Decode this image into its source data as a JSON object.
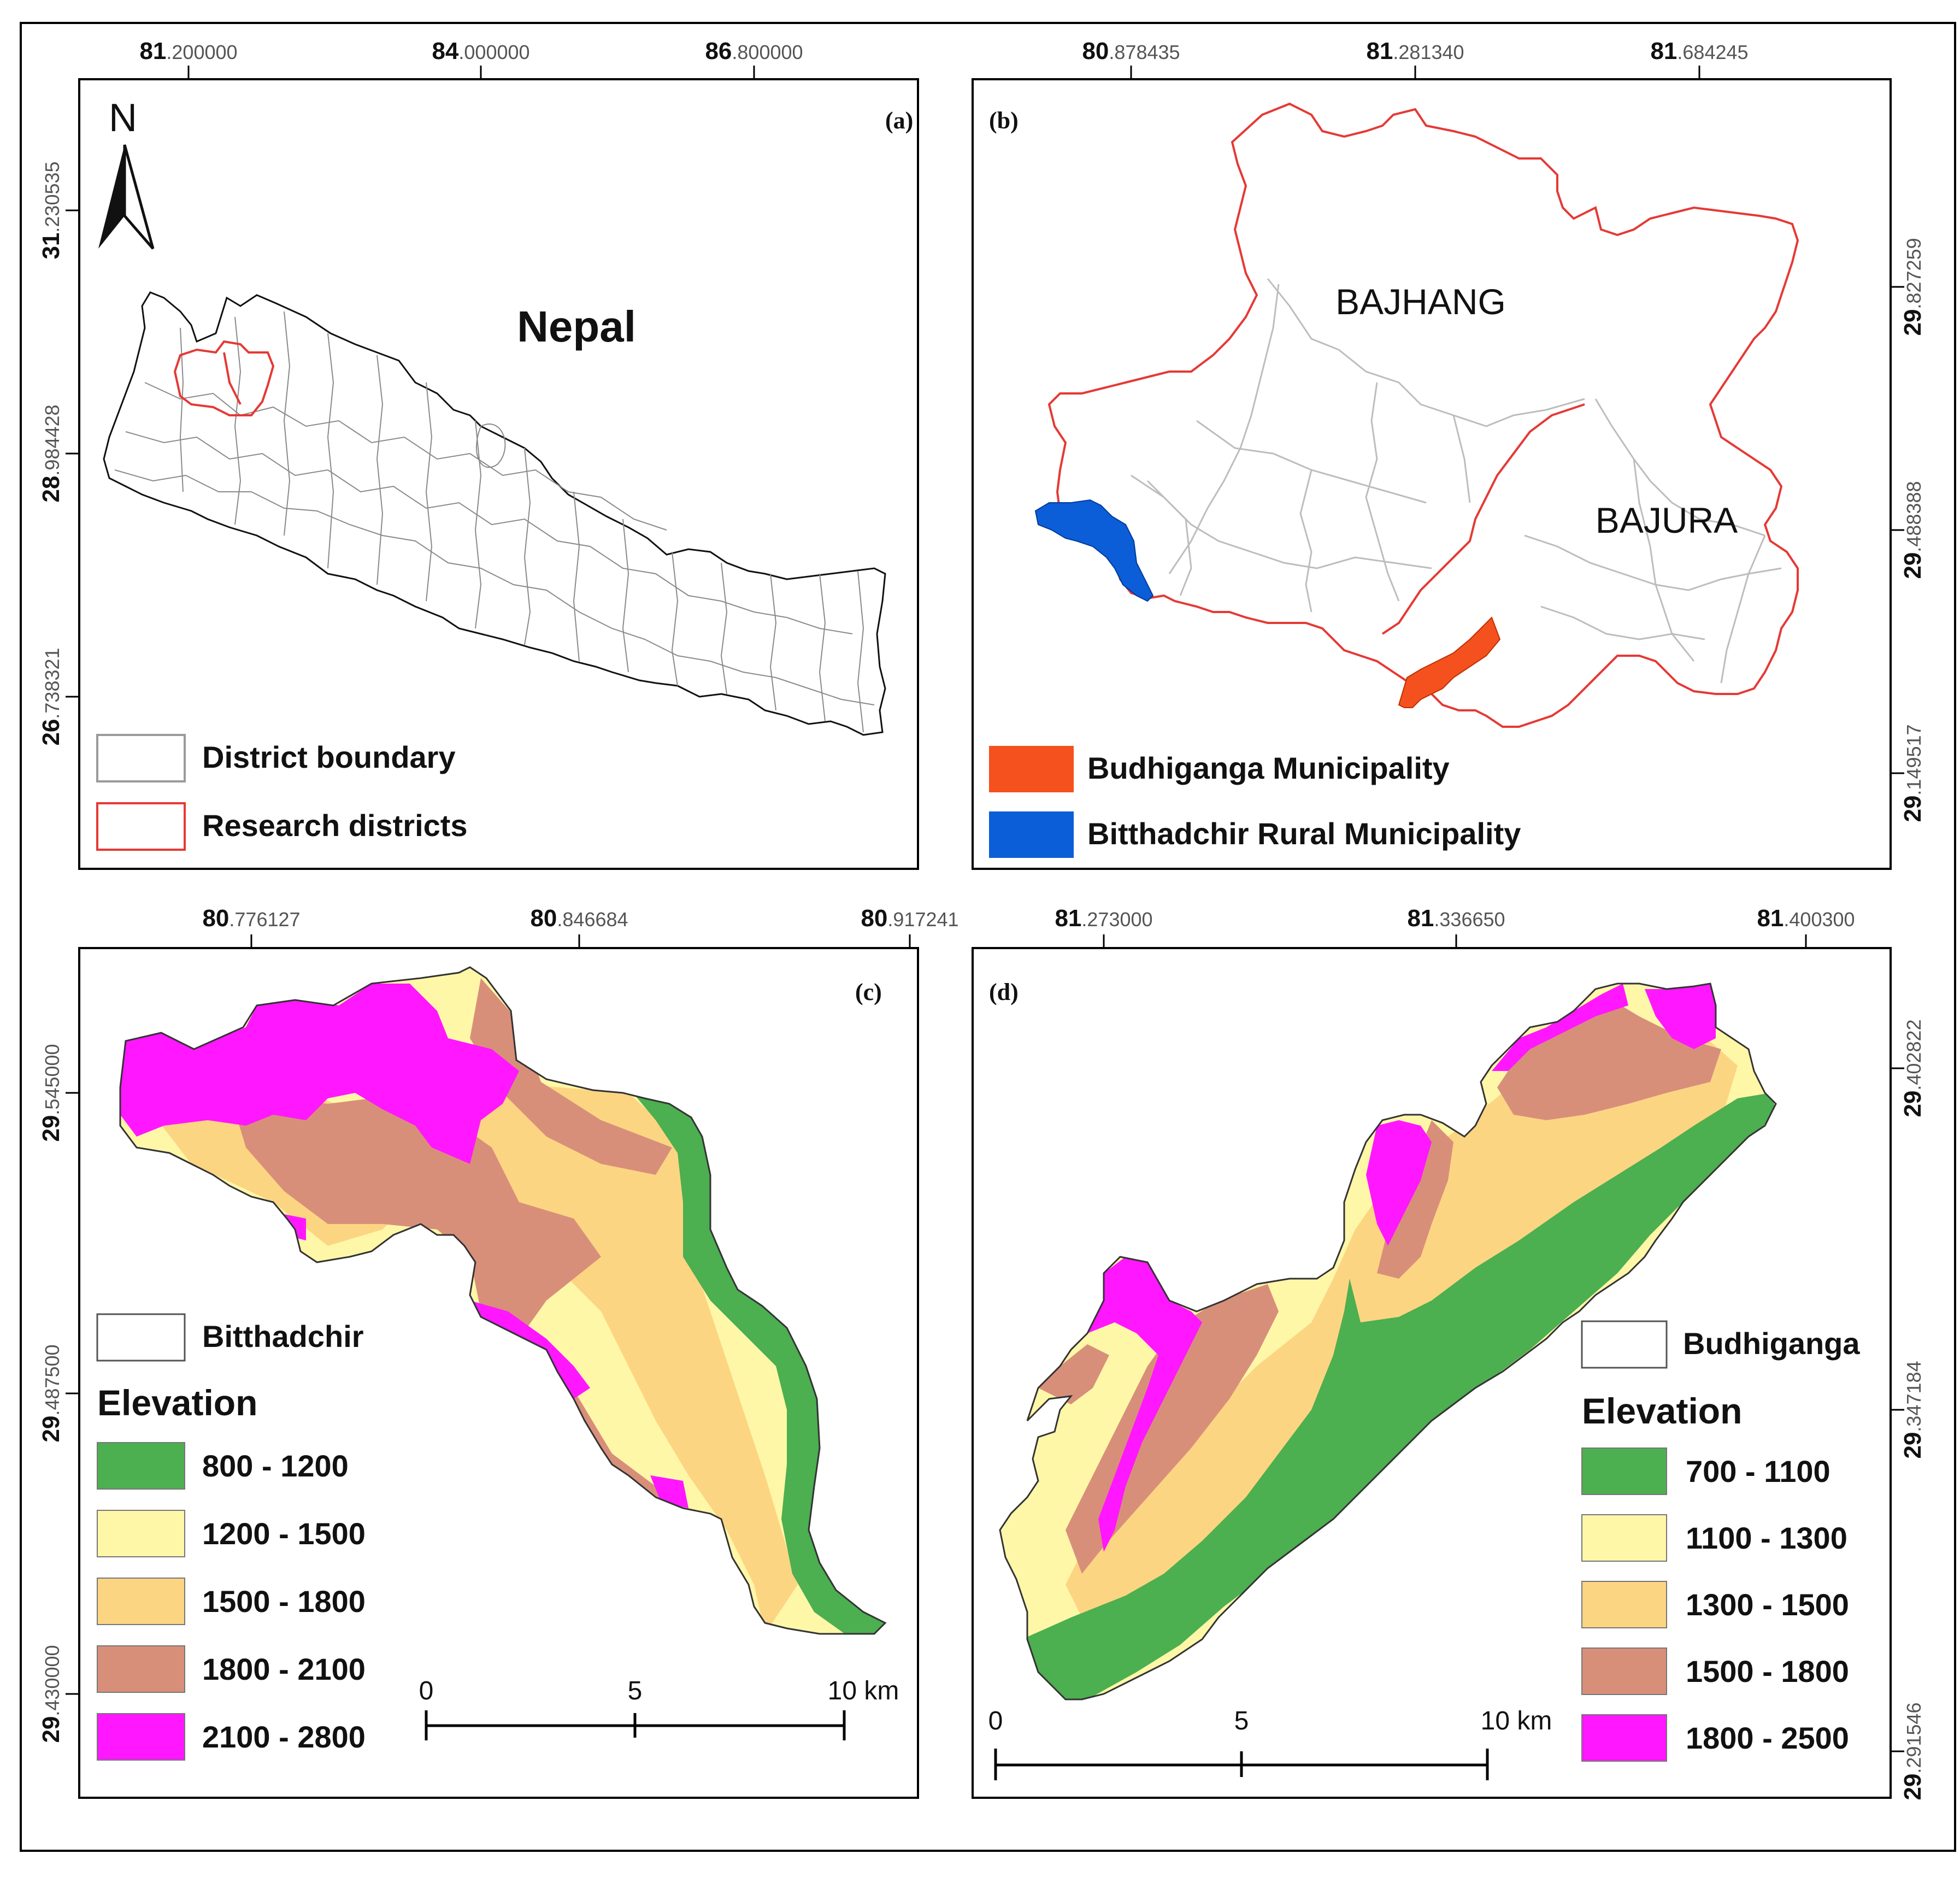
{
  "figure": {
    "panels": [
      {
        "id": "a",
        "label": "(a)",
        "north_arrow": "N",
        "country_label": "Nepal",
        "top_ticks": [
          {
            "major": "81",
            "minor": ".200000"
          },
          {
            "major": "84",
            "minor": ".000000"
          },
          {
            "major": "86",
            "minor": ".800000"
          }
        ],
        "left_ticks": [
          {
            "major": "31",
            "minor": ".230535"
          },
          {
            "major": "28",
            "minor": ".984428"
          },
          {
            "major": "26",
            "minor": ".738321"
          }
        ],
        "legend": [
          {
            "label": "District boundary",
            "fill": "#ffffff",
            "stroke": "#9a9a9a"
          },
          {
            "label": "Research districts",
            "fill": "#ffffff",
            "stroke": "#e53935"
          }
        ]
      },
      {
        "id": "b",
        "label": "(b)",
        "district_labels": [
          "BAJHANG",
          "BAJURA"
        ],
        "top_ticks": [
          {
            "major": "80",
            "minor": ".878435"
          },
          {
            "major": "81",
            "minor": ".281340"
          },
          {
            "major": "81",
            "minor": ".684245"
          }
        ],
        "right_ticks": [
          {
            "major": "29",
            "minor": ".827259"
          },
          {
            "major": "29",
            "minor": ".488388"
          },
          {
            "major": "29",
            "minor": ".149517"
          }
        ],
        "legend": [
          {
            "label": "Budhiganga Municipality",
            "fill": "#f4511e"
          },
          {
            "label": "Bitthadchir Rural Municipality",
            "fill": "#0b5ed7"
          }
        ]
      },
      {
        "id": "c",
        "label": "(c)",
        "top_ticks": [
          {
            "major": "80",
            "minor": ".776127"
          },
          {
            "major": "80",
            "minor": ".846684"
          },
          {
            "major": "80",
            "minor": ".917241"
          }
        ],
        "left_ticks": [
          {
            "major": "29",
            "minor": ".545000"
          },
          {
            "major": "29",
            "minor": ".487500"
          },
          {
            "major": "29",
            "minor": ".430000"
          }
        ],
        "boundary_legend": "Bitthadchir",
        "elevation_title": "Elevation",
        "elevation_classes": [
          {
            "label": "800 - 1200",
            "color": "#4caf50"
          },
          {
            "label": "1200  - 1500",
            "color": "#fff7a8"
          },
          {
            "label": "1500  - 1800",
            "color": "#fcd583"
          },
          {
            "label": "1800  - 2100",
            "color": "#d88f7a"
          },
          {
            "label": "2100 - 2800",
            "color": "#ff17ff"
          }
        ],
        "scale": {
          "labels": [
            "0",
            "5",
            "10 km"
          ]
        }
      },
      {
        "id": "d",
        "label": "(d)",
        "top_ticks": [
          {
            "major": "81",
            "minor": ".273000"
          },
          {
            "major": "81",
            "minor": ".336650"
          },
          {
            "major": "81",
            "minor": ".400300"
          }
        ],
        "right_ticks": [
          {
            "major": "29",
            "minor": ".402822"
          },
          {
            "major": "29",
            "minor": ".347184"
          },
          {
            "major": "29",
            "minor": ".291546"
          }
        ],
        "boundary_legend": "Budhiganga",
        "elevation_title": "Elevation",
        "elevation_classes": [
          {
            "label": "700 - 1100",
            "color": "#4caf50"
          },
          {
            "label": "1100  - 1300",
            "color": "#fff7a8"
          },
          {
            "label": "1300  - 1500",
            "color": "#fcd583"
          },
          {
            "label": "1500  - 1800",
            "color": "#d88f7a"
          },
          {
            "label": "1800  - 2500",
            "color": "#ff17ff"
          }
        ],
        "scale": {
          "labels": [
            "0",
            "5",
            "10 km"
          ]
        }
      }
    ]
  }
}
